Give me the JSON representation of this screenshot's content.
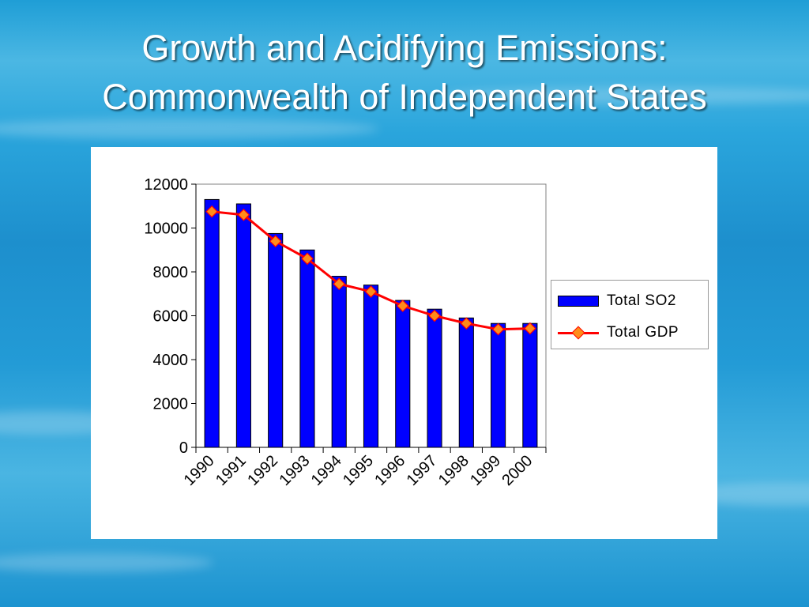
{
  "slide": {
    "title_line1": "Growth and Acidifying Emissions:",
    "title_line2": "Commonwealth of Independent States"
  },
  "colors": {
    "bar_fill": "#0000ff",
    "bar_stroke": "#000000",
    "line": "#ff0000",
    "marker": "#ff8c1a",
    "background": "#1f9ed6"
  },
  "chart_data": {
    "type": "bar",
    "categories": [
      "1990",
      "1991",
      "1992",
      "1993",
      "1994",
      "1995",
      "1996",
      "1997",
      "1998",
      "1999",
      "2000"
    ],
    "series": [
      {
        "name": "Total SO2",
        "type": "bar",
        "values": [
          11300,
          11100,
          9750,
          9000,
          7800,
          7400,
          6700,
          6300,
          5900,
          5650,
          5650
        ]
      },
      {
        "name": "Total GDP",
        "type": "line",
        "values": [
          10750,
          10600,
          9400,
          8600,
          7450,
          7100,
          6450,
          6000,
          5650,
          5380,
          5420
        ]
      }
    ],
    "y_ticks": [
      "0",
      "2000",
      "4000",
      "6000",
      "8000",
      "10000",
      "12000"
    ],
    "ylim": [
      0,
      12000
    ],
    "legend_position": "right",
    "grid": false
  }
}
